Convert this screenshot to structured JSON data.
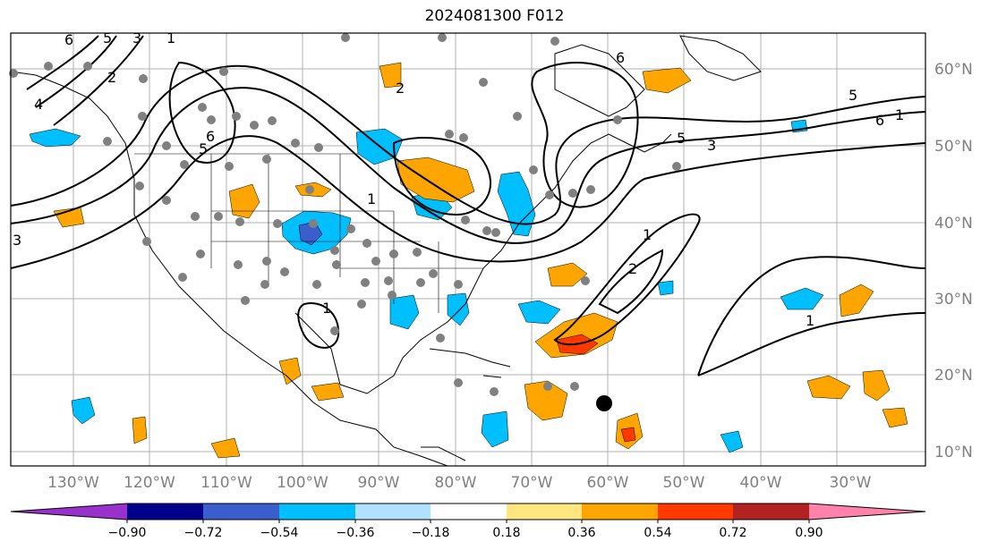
{
  "title": "2024081300 F012",
  "lat_labels": [
    "60°N",
    "50°N",
    "40°N",
    "30°N",
    "20°N",
    "10°N"
  ],
  "lon_labels": [
    "130°W",
    "120°W",
    "110°W",
    "100°W",
    "90°W",
    "80°W",
    "70°W",
    "60°W",
    "50°W",
    "40°W",
    "30°W"
  ],
  "colorbar": {
    "ticks": [
      "−0.90",
      "−0.72",
      "−0.54",
      "−0.36",
      "−0.18",
      "0.18",
      "0.36",
      "0.54",
      "0.72",
      "0.90"
    ],
    "colors": [
      "#9932cc",
      "#00008b",
      "#3a5fcd",
      "#00bfff",
      "#b0e2ff",
      "#ffffff",
      "#ffe680",
      "#ffa500",
      "#ff3800",
      "#b22222",
      "#ff82ab"
    ]
  },
  "contour_labels": [
    "6",
    "5",
    "3",
    "1",
    "2",
    "4",
    "6",
    "5",
    "3",
    "2",
    "1",
    "1",
    "1",
    "2",
    "1",
    "6",
    "5",
    "3",
    "1",
    "5",
    "6"
  ],
  "colors": {
    "frame": "#000000",
    "grid": "#b0b0b0",
    "station_marker": "#808080",
    "storm_marker": "#000000"
  }
}
